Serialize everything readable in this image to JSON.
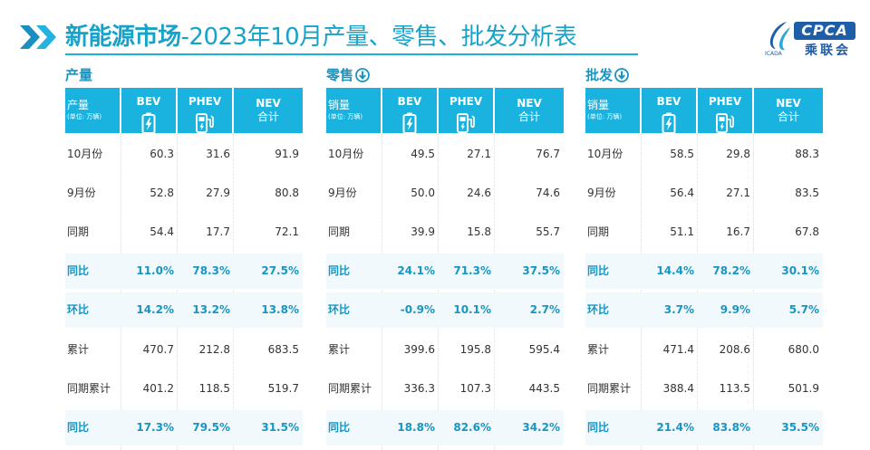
{
  "header": {
    "title_bold": "新能源市场",
    "title_rest": "-2023年10月产量、零售、批发分析表",
    "logo_brand": "CPCA",
    "logo_cn": "乘联会",
    "logo_mini": "ICADA"
  },
  "columns": {
    "bev": "BEV",
    "phev": "PHEV",
    "nev_line1": "NEV",
    "nev_line2": "合计",
    "unit": "(单位: 万辆)"
  },
  "sections": [
    {
      "label": "产量",
      "corner": "产量",
      "has_arrow": false,
      "rows": [
        {
          "k": "10月份",
          "bev": "60.3",
          "phev": "31.6",
          "nev": "91.9",
          "hl": false
        },
        {
          "k": "9月份",
          "bev": "52.8",
          "phev": "27.9",
          "nev": "80.8",
          "hl": false
        },
        {
          "k": "同期",
          "bev": "54.4",
          "phev": "17.7",
          "nev": "72.1",
          "hl": false
        },
        {
          "k": "同比",
          "bev": "11.0%",
          "phev": "78.3%",
          "nev": "27.5%",
          "hl": true
        },
        {
          "k": "环比",
          "bev": "14.2%",
          "phev": "13.2%",
          "nev": "13.8%",
          "hl": true
        },
        {
          "k": "累计",
          "bev": "470.7",
          "phev": "212.8",
          "nev": "683.5",
          "hl": false
        },
        {
          "k": "同期累计",
          "bev": "401.2",
          "phev": "118.5",
          "nev": "519.7",
          "hl": false
        },
        {
          "k": "同比",
          "bev": "17.3%",
          "phev": "79.5%",
          "nev": "31.5%",
          "hl": true
        }
      ]
    },
    {
      "label": "零售",
      "corner": "销量",
      "has_arrow": true,
      "rows": [
        {
          "k": "10月份",
          "bev": "49.5",
          "phev": "27.1",
          "nev": "76.7",
          "hl": false
        },
        {
          "k": "9月份",
          "bev": "50.0",
          "phev": "24.6",
          "nev": "74.6",
          "hl": false
        },
        {
          "k": "同期",
          "bev": "39.9",
          "phev": "15.8",
          "nev": "55.7",
          "hl": false
        },
        {
          "k": "同比",
          "bev": "24.1%",
          "phev": "71.3%",
          "nev": "37.5%",
          "hl": true
        },
        {
          "k": "环比",
          "bev": "-0.9%",
          "phev": "10.1%",
          "nev": "2.7%",
          "hl": true
        },
        {
          "k": "累计",
          "bev": "399.6",
          "phev": "195.8",
          "nev": "595.4",
          "hl": false
        },
        {
          "k": "同期累计",
          "bev": "336.3",
          "phev": "107.3",
          "nev": "443.5",
          "hl": false
        },
        {
          "k": "同比",
          "bev": "18.8%",
          "phev": "82.6%",
          "nev": "34.2%",
          "hl": true
        }
      ]
    },
    {
      "label": "批发",
      "corner": "销量",
      "has_arrow": true,
      "rows": [
        {
          "k": "10月份",
          "bev": "58.5",
          "phev": "29.8",
          "nev": "88.3",
          "hl": false
        },
        {
          "k": "9月份",
          "bev": "56.4",
          "phev": "27.1",
          "nev": "83.5",
          "hl": false
        },
        {
          "k": "同期",
          "bev": "51.1",
          "phev": "16.7",
          "nev": "67.8",
          "hl": false
        },
        {
          "k": "同比",
          "bev": "14.4%",
          "phev": "78.2%",
          "nev": "30.1%",
          "hl": true
        },
        {
          "k": "环比",
          "bev": "3.7%",
          "phev": "9.9%",
          "nev": "5.7%",
          "hl": true
        },
        {
          "k": "累计",
          "bev": "471.4",
          "phev": "208.6",
          "nev": "680.0",
          "hl": false
        },
        {
          "k": "同期累计",
          "bev": "388.4",
          "phev": "113.5",
          "nev": "501.9",
          "hl": false
        },
        {
          "k": "同比",
          "bev": "21.4%",
          "phev": "83.8%",
          "nev": "35.5%",
          "hl": true
        }
      ]
    }
  ],
  "colors": {
    "accent": "#1ab3df",
    "title": "#16a2c9",
    "highlight_text": "#1796c4",
    "brand": "#1e5ea8"
  },
  "icons": {
    "header": "double-chevron-right-icon",
    "bev": "battery-icon",
    "phev": "fuel-pump-charger-icon",
    "arrow": "arrow-down-circle-icon"
  }
}
